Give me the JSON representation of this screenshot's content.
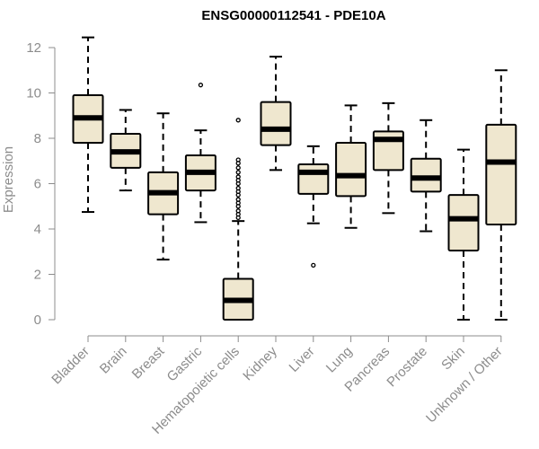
{
  "chart_data": {
    "type": "boxplot",
    "title": "ENSG00000112541 - PDE10A",
    "xlabel": "",
    "ylabel": "Expression",
    "ylim": [
      0,
      12
    ],
    "yticks": [
      0,
      2,
      4,
      6,
      8,
      10,
      12
    ],
    "grid": false,
    "colors": {
      "box_fill": "#efe7cf",
      "stroke": "#000000",
      "axis": "#8c8c8c"
    },
    "categories": [
      "Bladder",
      "Brain",
      "Breast",
      "Gastric",
      "Hematopoietic cells",
      "Kidney",
      "Liver",
      "Lung",
      "Pancreas",
      "Prostate",
      "Skin",
      "Unknown / Other"
    ],
    "boxes": [
      {
        "category": "Bladder",
        "whisker_low": 4.75,
        "q1": 7.8,
        "median": 8.9,
        "q3": 9.9,
        "whisker_high": 12.45,
        "outliers": []
      },
      {
        "category": "Brain",
        "whisker_low": 5.7,
        "q1": 6.7,
        "median": 7.4,
        "q3": 8.2,
        "whisker_high": 9.25,
        "outliers": []
      },
      {
        "category": "Breast",
        "whisker_low": 2.65,
        "q1": 4.65,
        "median": 5.6,
        "q3": 6.5,
        "whisker_high": 9.1,
        "outliers": []
      },
      {
        "category": "Gastric",
        "whisker_low": 4.3,
        "q1": 5.7,
        "median": 6.5,
        "q3": 7.25,
        "whisker_high": 8.35,
        "outliers": [
          10.35
        ]
      },
      {
        "category": "Hematopoietic cells",
        "whisker_low": 0,
        "q1": 0,
        "median": 0.85,
        "q3": 1.8,
        "whisker_high": 4.35,
        "outliers": [
          4.5,
          4.65,
          4.8,
          5.0,
          5.15,
          5.3,
          5.5,
          5.65,
          5.8,
          6.0,
          6.15,
          6.3,
          6.5,
          6.7,
          6.9,
          7.05,
          8.8
        ]
      },
      {
        "category": "Kidney",
        "whisker_low": 6.6,
        "q1": 7.7,
        "median": 8.4,
        "q3": 9.6,
        "whisker_high": 11.6,
        "outliers": []
      },
      {
        "category": "Liver",
        "whisker_low": 4.25,
        "q1": 5.55,
        "median": 6.5,
        "q3": 6.85,
        "whisker_high": 7.65,
        "outliers": [
          2.4
        ]
      },
      {
        "category": "Lung",
        "whisker_low": 4.05,
        "q1": 5.45,
        "median": 6.35,
        "q3": 7.8,
        "whisker_high": 9.45,
        "outliers": []
      },
      {
        "category": "Pancreas",
        "whisker_low": 4.7,
        "q1": 6.6,
        "median": 7.95,
        "q3": 8.3,
        "whisker_high": 9.55,
        "outliers": []
      },
      {
        "category": "Prostate",
        "whisker_low": 3.9,
        "q1": 5.65,
        "median": 6.25,
        "q3": 7.1,
        "whisker_high": 8.8,
        "outliers": []
      },
      {
        "category": "Skin",
        "whisker_low": 0,
        "q1": 3.05,
        "median": 4.45,
        "q3": 5.5,
        "whisker_high": 7.5,
        "outliers": []
      },
      {
        "category": "Unknown / Other",
        "whisker_low": 0,
        "q1": 4.2,
        "median": 6.95,
        "q3": 8.6,
        "whisker_high": 11.0,
        "outliers": []
      }
    ]
  }
}
